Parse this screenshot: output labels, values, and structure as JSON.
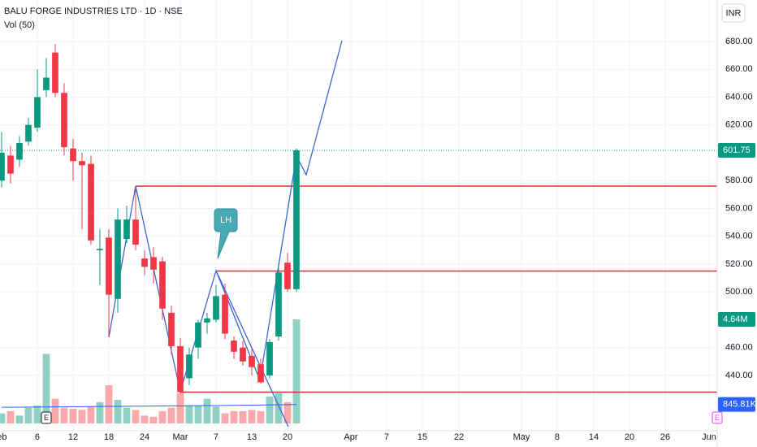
{
  "header": {
    "title": "BALU FORGE INDUSTRIES LTD · 1D · NSE",
    "volume_label": "Vol (50)",
    "currency": "INR"
  },
  "chart_data": {
    "type": "candlestick",
    "x": [
      -4,
      -3,
      -2,
      -1,
      0,
      1,
      2,
      3,
      4,
      5,
      6,
      7,
      8,
      9,
      10,
      11,
      12,
      13,
      14,
      15,
      16,
      17,
      18,
      19,
      20,
      21,
      22,
      23,
      24,
      25,
      26,
      27,
      28,
      29
    ],
    "open": [
      580,
      598,
      595,
      608,
      618,
      645,
      672,
      643,
      603,
      594,
      592,
      530,
      539,
      495,
      538,
      552,
      524,
      525,
      522,
      485,
      461,
      438,
      460,
      478,
      480,
      498,
      465,
      460,
      454,
      448,
      440,
      468,
      521,
      502
    ],
    "high": [
      615,
      605,
      612,
      625,
      660,
      668,
      678,
      650,
      610,
      600,
      598,
      545,
      545,
      560,
      562,
      575,
      530,
      532,
      525,
      490,
      467,
      460,
      480,
      485,
      505,
      506,
      468,
      465,
      460,
      452,
      466,
      517,
      528,
      603
    ],
    "low": [
      575,
      578,
      590,
      605,
      615,
      640,
      640,
      598,
      580,
      545,
      534,
      505,
      468,
      485,
      535,
      530,
      512,
      506,
      480,
      455,
      427,
      433,
      452,
      470,
      478,
      466,
      452,
      447,
      440,
      434,
      438,
      465,
      500,
      500
    ],
    "close": [
      600,
      585,
      607,
      620,
      640,
      654,
      643,
      604,
      594,
      591,
      537,
      531,
      498,
      552,
      552,
      534,
      518,
      516,
      488,
      461,
      428,
      455,
      478,
      481,
      497,
      470,
      457,
      450,
      446,
      435,
      464,
      514,
      502,
      601.75
    ],
    "up_color": "#089981",
    "down_color": "#f23645",
    "ylim": [
      402,
      709.75
    ],
    "xlim": [
      -4.18,
      76.09
    ],
    "yticks": [
      {
        "value": 680,
        "label": "680.00"
      },
      {
        "value": 660,
        "label": "660.00"
      },
      {
        "value": 640,
        "label": "640.00"
      },
      {
        "value": 620,
        "label": "620.00"
      },
      {
        "value": 580,
        "label": "580.00"
      },
      {
        "value": 560,
        "label": "560.00"
      },
      {
        "value": 540,
        "label": "540.00"
      },
      {
        "value": 520,
        "label": "520.00"
      },
      {
        "value": 500,
        "label": "500.00"
      },
      {
        "value": 460,
        "label": "460.00"
      },
      {
        "value": 440,
        "label": "440.00"
      }
    ],
    "xticks": [
      {
        "value": -4.27,
        "label": "Feb"
      },
      {
        "value": 0,
        "label": "6"
      },
      {
        "value": 4,
        "label": "12"
      },
      {
        "value": 8,
        "label": "18"
      },
      {
        "value": 12,
        "label": "24"
      },
      {
        "value": 16,
        "label": "Mar"
      },
      {
        "value": 20,
        "label": "7"
      },
      {
        "value": 24,
        "label": "13"
      },
      {
        "value": 28,
        "label": "20"
      },
      {
        "value": 35.09,
        "label": "Apr"
      },
      {
        "value": 39.09,
        "label": "7"
      },
      {
        "value": 43.09,
        "label": "15"
      },
      {
        "value": 47.18,
        "label": "22"
      },
      {
        "value": 54.18,
        "label": "May"
      },
      {
        "value": 58.18,
        "label": "8"
      },
      {
        "value": 62.27,
        "label": "14"
      },
      {
        "value": 66.27,
        "label": "20"
      },
      {
        "value": 70.27,
        "label": "26"
      },
      {
        "value": 75.18,
        "label": "Jun"
      }
    ],
    "levels": [
      {
        "price": 576,
        "from": 11
      },
      {
        "price": 515,
        "from": 20
      },
      {
        "price": 428,
        "from": 16
      }
    ],
    "level_color": "#d32f3c",
    "volume": {
      "values": [
        450000,
        550000,
        350000,
        700000,
        800000,
        3100000,
        1100000,
        700000,
        650000,
        600000,
        750000,
        950000,
        1700000,
        1050000,
        700000,
        600000,
        350000,
        300000,
        550000,
        700000,
        1350000,
        800000,
        800000,
        1100000,
        750000,
        450000,
        550000,
        550000,
        600000,
        550000,
        1200000,
        1350000,
        950000,
        4640000
      ],
      "ylim": [
        0,
        18880000
      ],
      "up_color": "#8fd0c5",
      "down_color": "#f9a8ab",
      "last_label": "4.64M",
      "ma": {
        "values": [
          720000,
          722000,
          725000,
          728000,
          732000,
          735000,
          739000,
          742000,
          746000,
          749000,
          752000,
          756000,
          759000,
          762000,
          766000,
          769000,
          772000,
          775000,
          778000,
          782000,
          785000,
          788000,
          792000,
          795000,
          799000,
          803000,
          807000,
          812000,
          817000,
          822000,
          827000,
          832000,
          838000,
          845810
        ],
        "label": "845.81K",
        "color": "#2962ff"
      }
    },
    "annotation": "LH",
    "events": [
      {
        "label": "E",
        "x": 1
      },
      {
        "label": "E"
      }
    ]
  }
}
